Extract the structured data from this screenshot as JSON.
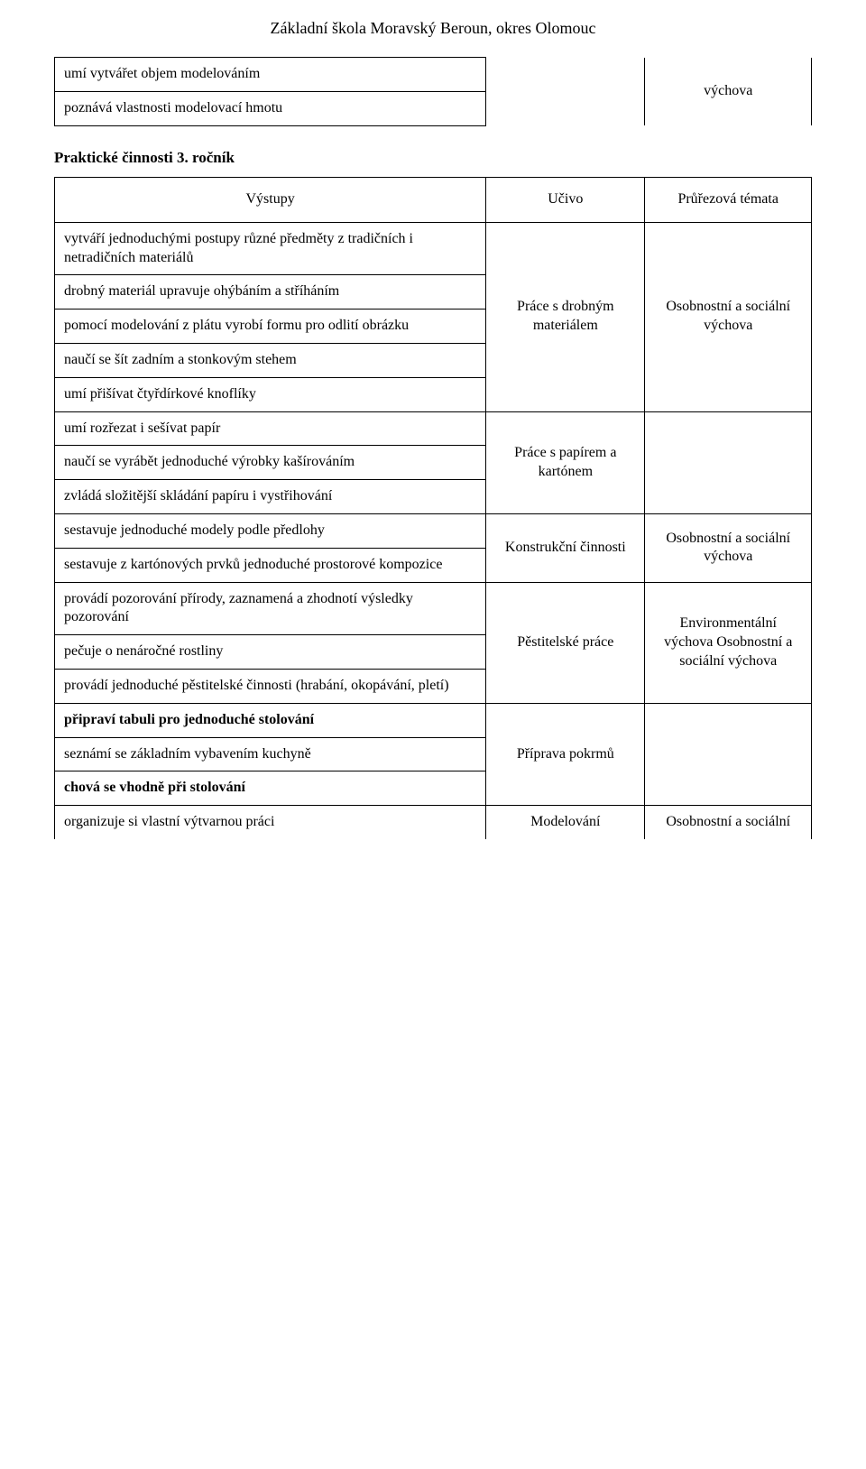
{
  "header": "Základní škola Moravský Beroun, okres Olomouc",
  "table1": {
    "rows": [
      {
        "left": "umí vytvářet objem modelováním"
      },
      {
        "left": "poznává vlastnosti modelovací hmotu"
      }
    ],
    "mid": "",
    "right": "výchova"
  },
  "sectionTitle": "Praktické činnosti 3. ročník",
  "table2": {
    "headers": {
      "left": "Výstupy",
      "mid": "Učivo",
      "right": "Průřezová témata"
    },
    "block1": {
      "rows": [
        "vytváří jednoduchými postupy různé předměty z tradičních i netradičních materiálů",
        "drobný materiál upravuje ohýbáním a stříháním",
        "pomocí modelování z plátu vyrobí formu pro odlití obrázku",
        "naučí se šít zadním a stonkovým stehem",
        "umí přišívat čtyřdírkové knoflíky"
      ],
      "mid": "Práce s drobným materiálem",
      "right": "Osobnostní a sociální výchova"
    },
    "block2": {
      "rows": [
        "umí rozřezat i sešívat papír",
        "naučí se vyrábět jednoduché výrobky kašírováním",
        "zvládá složitější skládání papíru i vystřihování"
      ],
      "mid": "Práce s papírem a kartónem",
      "right": ""
    },
    "block3": {
      "rows": [
        "sestavuje jednoduché modely podle předlohy",
        "sestavuje z kartónových prvků jednoduché prostorové kompozice"
      ],
      "mid": "Konstrukční činnosti",
      "right": "Osobnostní a sociální výchova"
    },
    "block4": {
      "rows": [
        "provádí pozorování přírody, zaznamená a zhodnotí výsledky pozorování",
        "pečuje o nenáročné rostliny",
        "provádí jednoduché pěstitelské činnosti (hrabání, okopávání, pletí)"
      ],
      "mid": "Pěstitelské práce",
      "right": "Environmentální výchova Osobnostní a sociální výchova"
    },
    "block5": {
      "rows": [
        "připraví tabuli pro jednoduché stolování",
        "seznámí se základním vybavením kuchyně",
        "chová se vhodně při stolování"
      ],
      "mid": "Příprava pokrmů",
      "right": ""
    },
    "block6": {
      "left": "organizuje si vlastní výtvarnou práci",
      "mid": "Modelování",
      "right": "Osobnostní a sociální"
    }
  }
}
